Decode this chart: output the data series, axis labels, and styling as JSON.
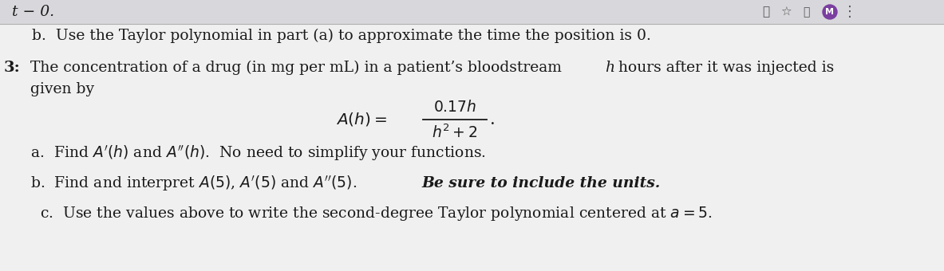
{
  "bg_color": "#f0f0f0",
  "top_strip_color": "#d8d8dc",
  "main_bg": "#f5f5f5",
  "text_color": "#1a1a1a",
  "top_strip_text": "t − 0.",
  "line_b": "b.  Use the Taylor polynomial in part (a) to approximate the time the position is 0.",
  "prob_num": "3:",
  "prob_text": "The concentration of a drug (in mg per mL) in a patient’s bloodstream ",
  "prob_h": "h",
  "prob_rest": " hours after it was injected is",
  "given_by": "given by",
  "sub_a": "a.  Find $A'(h)$ and $A''(h)$.  No need to simplify your functions.",
  "sub_b_pre": "b.  Find and interpret $A(5)$, $A'(5)$ and $A''(5)$.  ",
  "sub_b_bold": "Be sure to include the units.",
  "sub_c": "c.  Use the values above to write the second-degree Taylor polynomial centered at $a = 5$.",
  "fontsize": 13.5,
  "title_fontsize": 14.0
}
